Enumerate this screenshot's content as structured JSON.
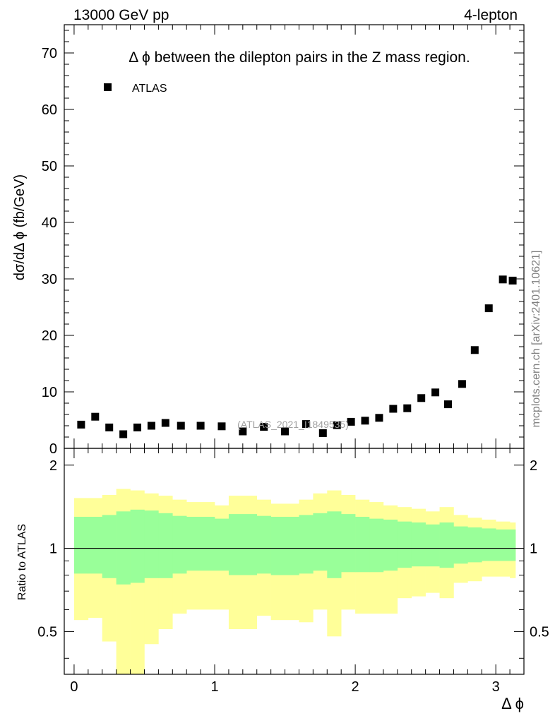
{
  "header": {
    "left": "13000 GeV pp",
    "right": "4-lepton"
  },
  "side_text": "mcplots.cern.ch [arXiv:2401.10621]",
  "watermark": "(ATLAS_2021_I1849535)",
  "colors": {
    "yellow_band": "#ffff99",
    "green_band": "#99ff99",
    "marker": "#000000"
  },
  "chart_data": [
    {
      "type": "scatter",
      "title": "Δ ϕ between the dilepton pairs in the Z mass region.",
      "ylabel": "dσ/dΔ ϕ (fb/GeV)",
      "xlabel": "Δ ϕ",
      "xlim": [
        -0.07,
        3.2
      ],
      "ylim": [
        0,
        75
      ],
      "yticks": [
        0,
        10,
        20,
        30,
        40,
        50,
        60,
        70
      ],
      "ytick_labels": [
        "0",
        "10",
        "20",
        "30",
        "40",
        "50",
        "60",
        "70"
      ],
      "legend": {
        "label": "ATLAS",
        "position": "top-left"
      },
      "series": [
        {
          "name": "ATLAS",
          "x": [
            0.05,
            0.15,
            0.25,
            0.35,
            0.45,
            0.55,
            0.65,
            0.76,
            0.9,
            1.05,
            1.2,
            1.35,
            1.5,
            1.65,
            1.77,
            1.87,
            1.97,
            2.07,
            2.17,
            2.27,
            2.37,
            2.47,
            2.57,
            2.66,
            2.76,
            2.85,
            2.95,
            3.05,
            3.12
          ],
          "y": [
            4.2,
            5.6,
            3.7,
            2.5,
            3.7,
            4.0,
            4.5,
            4.0,
            4.0,
            3.9,
            3.0,
            3.8,
            3.0,
            4.3,
            2.7,
            4.1,
            4.7,
            4.9,
            5.4,
            7.0,
            7.1,
            8.9,
            9.9,
            7.8,
            11.4,
            17.4,
            24.8,
            29.9,
            29.7
          ]
        }
      ]
    },
    {
      "type": "area",
      "ylabel": "Ratio to ATLAS",
      "xlim": [
        -0.07,
        3.2
      ],
      "ylim": [
        0.35,
        2.3
      ],
      "yticks": [
        0.5,
        1,
        2
      ],
      "ytick_labels": [
        "0.5",
        "1",
        "2"
      ],
      "xticks": [
        0,
        1,
        2,
        3
      ],
      "xtick_labels": [
        "0",
        "1",
        "2",
        "3"
      ],
      "reference_line": 1,
      "bins": [
        0,
        0.1,
        0.2,
        0.3,
        0.4,
        0.5,
        0.6,
        0.7,
        0.8,
        1.0,
        1.1,
        1.3,
        1.4,
        1.6,
        1.7,
        1.8,
        1.9,
        2.0,
        2.1,
        2.2,
        2.3,
        2.4,
        2.5,
        2.6,
        2.7,
        2.8,
        2.9,
        3.0,
        3.1,
        3.14
      ],
      "series": [
        {
          "name": "outer band",
          "upper": [
            1.52,
            1.52,
            1.56,
            1.64,
            1.62,
            1.58,
            1.55,
            1.5,
            1.47,
            1.43,
            1.55,
            1.5,
            1.45,
            1.5,
            1.58,
            1.62,
            1.56,
            1.5,
            1.47,
            1.43,
            1.41,
            1.39,
            1.36,
            1.41,
            1.32,
            1.29,
            1.27,
            1.25,
            1.24
          ],
          "lower": [
            0.55,
            0.56,
            0.46,
            0.32,
            0.35,
            0.45,
            0.51,
            0.58,
            0.6,
            0.6,
            0.51,
            0.57,
            0.55,
            0.54,
            0.6,
            0.48,
            0.6,
            0.58,
            0.58,
            0.58,
            0.66,
            0.67,
            0.69,
            0.66,
            0.75,
            0.76,
            0.79,
            0.79,
            0.78
          ]
        },
        {
          "name": "inner band",
          "upper": [
            1.3,
            1.3,
            1.32,
            1.36,
            1.38,
            1.37,
            1.34,
            1.31,
            1.3,
            1.28,
            1.33,
            1.31,
            1.3,
            1.32,
            1.34,
            1.36,
            1.33,
            1.3,
            1.28,
            1.27,
            1.25,
            1.24,
            1.22,
            1.24,
            1.2,
            1.19,
            1.18,
            1.17,
            1.17
          ],
          "lower": [
            0.81,
            0.81,
            0.78,
            0.74,
            0.75,
            0.78,
            0.78,
            0.81,
            0.83,
            0.83,
            0.8,
            0.81,
            0.8,
            0.81,
            0.83,
            0.78,
            0.82,
            0.82,
            0.82,
            0.83,
            0.85,
            0.86,
            0.86,
            0.85,
            0.88,
            0.89,
            0.9,
            0.9,
            0.9
          ]
        }
      ]
    }
  ]
}
